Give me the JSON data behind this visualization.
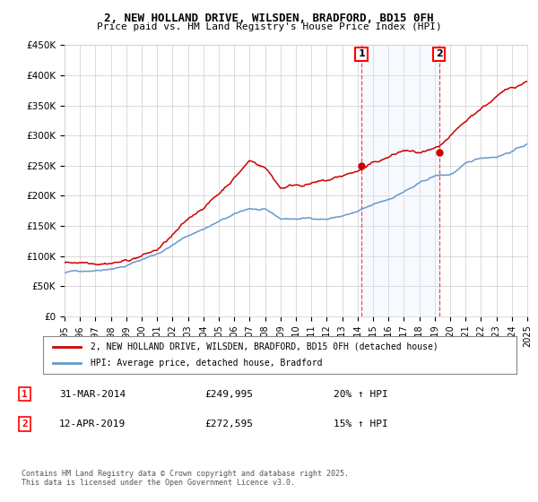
{
  "title": "2, NEW HOLLAND DRIVE, WILSDEN, BRADFORD, BD15 0FH",
  "subtitle": "Price paid vs. HM Land Registry's House Price Index (HPI)",
  "ylabel_ticks": [
    "£0",
    "£50K",
    "£100K",
    "£150K",
    "£200K",
    "£250K",
    "£300K",
    "£350K",
    "£400K",
    "£450K"
  ],
  "ytick_values": [
    0,
    50000,
    100000,
    150000,
    200000,
    250000,
    300000,
    350000,
    400000,
    450000
  ],
  "ylim": [
    0,
    450000
  ],
  "xlim_start": 1995,
  "xlim_end": 2025,
  "xticks": [
    1995,
    1996,
    1997,
    1998,
    1999,
    2000,
    2001,
    2002,
    2003,
    2004,
    2005,
    2006,
    2007,
    2008,
    2009,
    2010,
    2011,
    2012,
    2013,
    2014,
    2015,
    2016,
    2017,
    2018,
    2019,
    2020,
    2021,
    2022,
    2023,
    2024,
    2025
  ],
  "transaction1_x": 2014.25,
  "transaction1_y": 249995,
  "transaction1_label": "1",
  "transaction2_x": 2019.28,
  "transaction2_y": 272595,
  "transaction2_label": "2",
  "vline1_x": 2014.25,
  "vline2_x": 2019.28,
  "shade_xmin": 2014.25,
  "shade_xmax": 2019.28,
  "line1_color": "#cc0000",
  "line2_color": "#6699cc",
  "shade_color": "#ddeeff",
  "vline_color": "#ff4444",
  "background_color": "#ffffff",
  "grid_color": "#cccccc",
  "legend_line1": "2, NEW HOLLAND DRIVE, WILSDEN, BRADFORD, BD15 0FH (detached house)",
  "legend_line2": "HPI: Average price, detached house, Bradford",
  "annotation1_date": "31-MAR-2014",
  "annotation1_price": "£249,995",
  "annotation1_hpi": "20% ↑ HPI",
  "annotation2_date": "12-APR-2019",
  "annotation2_price": "£272,595",
  "annotation2_hpi": "15% ↑ HPI",
  "footer": "Contains HM Land Registry data © Crown copyright and database right 2025.\nThis data is licensed under the Open Government Licence v3.0."
}
